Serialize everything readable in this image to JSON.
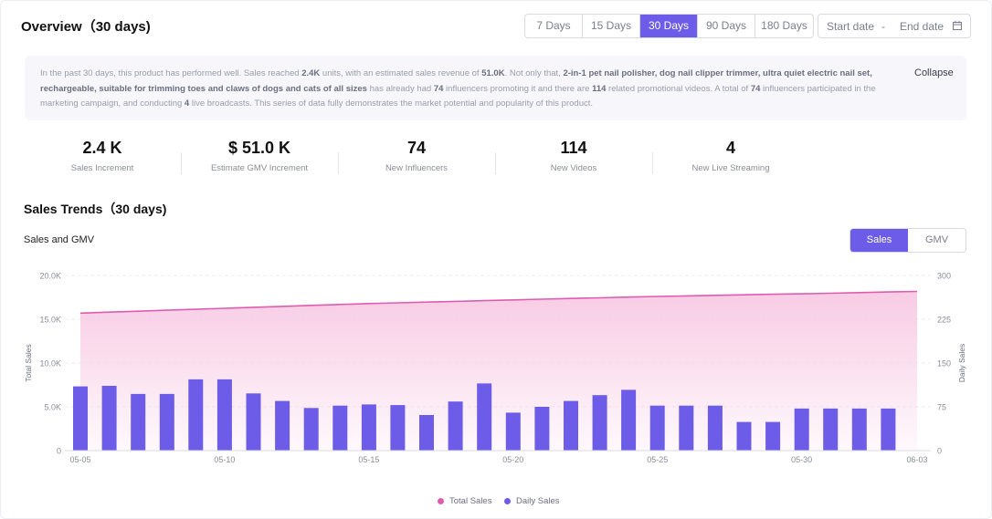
{
  "header": {
    "title": "Overview（30 days)",
    "ranges": [
      "7 Days",
      "15 Days",
      "30 Days",
      "90 Days",
      "180 Days"
    ],
    "active_range": "30 Days",
    "start_placeholder": "Start date",
    "separator": "-",
    "end_placeholder": "End date"
  },
  "summary": {
    "collapse_label": "Collapse",
    "parts": [
      {
        "t": "In the past 30 days, this product has performed well. Sales reached ",
        "b": false
      },
      {
        "t": "2.4K",
        "b": true
      },
      {
        "t": " units, with an estimated sales revenue of ",
        "b": false
      },
      {
        "t": "51.0K",
        "b": true
      },
      {
        "t": ". Not only that, ",
        "b": false
      },
      {
        "t": "2-in-1 pet nail polisher, dog nail clipper trimmer, ultra quiet electric nail set, rechargeable, suitable for trimming toes and claws of dogs and cats of all sizes",
        "b": true
      },
      {
        "t": " has already had ",
        "b": false
      },
      {
        "t": "74",
        "b": true
      },
      {
        "t": " influencers promoting it and there are ",
        "b": false
      },
      {
        "t": "114",
        "b": true
      },
      {
        "t": " related promotional videos. A total of ",
        "b": false
      },
      {
        "t": "74",
        "b": true
      },
      {
        "t": " influencers participated in the marketing campaign, and conducting ",
        "b": false
      },
      {
        "t": "4",
        "b": true
      },
      {
        "t": " live broadcasts. This series of data fully demonstrates the market potential and popularity of this product.",
        "b": false
      }
    ]
  },
  "stats": [
    {
      "value": "2.4 K",
      "label": "Sales Increment"
    },
    {
      "value": "$ 51.0 K",
      "label": "Estimate GMV Increment"
    },
    {
      "value": "74",
      "label": "New Influencers"
    },
    {
      "value": "114",
      "label": "New Videos"
    },
    {
      "value": "4",
      "label": "New Live Streaming"
    }
  ],
  "trends": {
    "title": "Sales Trends（30 days)",
    "subtitle": "Sales and GMV",
    "toggle": [
      "Sales",
      "GMV"
    ],
    "active_toggle": "Sales"
  },
  "colors": {
    "accent": "#6c5ce7",
    "line": "#e05cb0",
    "area": "#f7c9e3",
    "bar": "#6c5ce7"
  },
  "chart_data": {
    "type": "bar",
    "x": [
      "05-05",
      "05-06",
      "05-07",
      "05-08",
      "05-09",
      "05-10",
      "05-11",
      "05-12",
      "05-13",
      "05-14",
      "05-15",
      "05-16",
      "05-17",
      "05-18",
      "05-19",
      "05-20",
      "05-21",
      "05-22",
      "05-23",
      "05-24",
      "05-25",
      "05-26",
      "05-27",
      "05-28",
      "05-29",
      "05-30",
      "05-31",
      "06-01",
      "06-02",
      "06-03"
    ],
    "x_tick_labels": [
      "05-05",
      "05-10",
      "05-15",
      "05-20",
      "05-25",
      "05-30",
      "06-03"
    ],
    "series": [
      {
        "name": "Total Sales",
        "type": "area",
        "axis": "left",
        "values": [
          15700,
          15810,
          15920,
          16030,
          16140,
          16250,
          16360,
          16470,
          16580,
          16690,
          16790,
          16880,
          16960,
          17040,
          17130,
          17210,
          17290,
          17370,
          17450,
          17530,
          17600,
          17670,
          17730,
          17790,
          17850,
          17910,
          17970,
          18040,
          18110,
          18180
        ]
      },
      {
        "name": "Daily Sales",
        "type": "bar",
        "axis": "right",
        "values": [
          110,
          111,
          97,
          97,
          122,
          122,
          98,
          85,
          73,
          77,
          79,
          78,
          61,
          84,
          115,
          65,
          75,
          85,
          95,
          104,
          77,
          77,
          77,
          49,
          49,
          72,
          72,
          72,
          72,
          null
        ]
      }
    ],
    "ylabel_left": "Total Sales",
    "ylabel_right": "Daily Sales",
    "ylim_left": [
      0,
      20000
    ],
    "ylim_right": [
      0,
      300
    ],
    "yticks_left": [
      "0",
      "5.0K",
      "10.0K",
      "15.0K",
      "20.0K"
    ],
    "yticks_right": [
      "0",
      "75",
      "150",
      "225",
      "300"
    ],
    "grid": true,
    "legend": "bottom-center"
  }
}
